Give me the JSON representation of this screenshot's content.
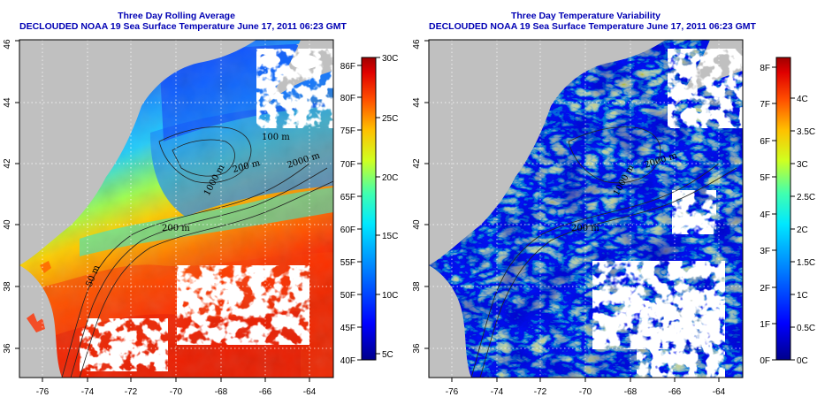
{
  "left_panel": {
    "title": "Three Day Rolling Average",
    "subtitle": "DECLOUDED NOAA 19 Sea Surface Temperature June 17, 2011 06:23 GMT",
    "lon_ticks": [
      "-76",
      "-74",
      "-72",
      "-70",
      "-68",
      "-66",
      "-64"
    ],
    "lat_ticks": [
      "36",
      "38",
      "40",
      "42",
      "44",
      "46"
    ],
    "colorbar_f": [
      "86F",
      "80F",
      "75F",
      "70F",
      "65F",
      "60F",
      "55F",
      "50F",
      "45F",
      "40F"
    ],
    "colorbar_c": [
      "30C",
      "25C",
      "20C",
      "15C",
      "10C",
      "5C"
    ],
    "contour_labels": [
      "50 m",
      "200 m",
      "1000 m",
      "2000 m",
      "200 m",
      "100 m"
    ]
  },
  "right_panel": {
    "title": "Three Day Temperature Variability",
    "subtitle": "DECLOUDED NOAA 19 Sea Surface Temperature June 17, 2011 06:23 GMT",
    "lon_ticks": [
      "-76",
      "-74",
      "-72",
      "-70",
      "-68",
      "-66",
      "-64"
    ],
    "lat_ticks": [
      "36",
      "38",
      "40",
      "42",
      "44",
      "46"
    ],
    "colorbar_f": [
      "8F",
      "7F",
      "6F",
      "5F",
      "4F",
      "3F",
      "2F",
      "1F",
      "0F"
    ],
    "colorbar_c": [
      "4C",
      "3.5C",
      "3C",
      "2.5C",
      "2C",
      "1.5C",
      "1C",
      "0.5C",
      "0C"
    ],
    "contour_labels": [
      "200 m",
      "1000 m",
      "2000 m"
    ]
  },
  "colors": {
    "title": "#0000b4",
    "land": "#c0c0c0",
    "cloud": "#ffffff",
    "sst_scale": [
      "#00008b",
      "#0000ff",
      "#0080ff",
      "#00e0ff",
      "#30ffc0",
      "#c0ff30",
      "#ffd000",
      "#ff7000",
      "#ff2000",
      "#a00000"
    ]
  }
}
